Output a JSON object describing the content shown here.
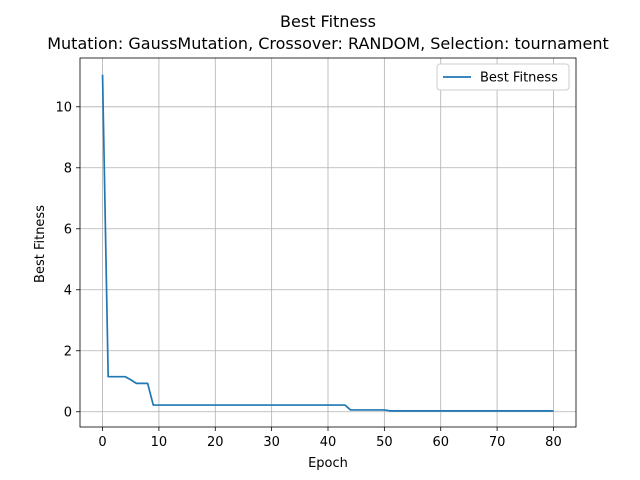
{
  "chart_data": {
    "type": "line",
    "title": "Best Fitness",
    "subtitle": "Mutation: GaussMutation, Crossover: RANDOM, Selection: tournament",
    "xlabel": "Epoch",
    "ylabel": "Best Fitness",
    "xlim": [
      -4,
      84
    ],
    "ylim": [
      -0.5,
      11.6
    ],
    "xticks": [
      0,
      10,
      20,
      30,
      40,
      50,
      60,
      70,
      80
    ],
    "yticks": [
      0,
      2,
      4,
      6,
      8,
      10
    ],
    "grid": true,
    "legend_position": "top-right",
    "series": [
      {
        "name": "Best Fitness",
        "color": "#1f77b4",
        "x": [
          0,
          1,
          2,
          3,
          4,
          5,
          6,
          7,
          8,
          9,
          10,
          20,
          30,
          40,
          43,
          44,
          50,
          51,
          60,
          70,
          80
        ],
        "y": [
          11.05,
          1.15,
          1.15,
          1.15,
          1.15,
          1.05,
          0.93,
          0.93,
          0.93,
          0.22,
          0.22,
          0.22,
          0.22,
          0.22,
          0.22,
          0.06,
          0.06,
          0.03,
          0.03,
          0.03,
          0.03
        ]
      }
    ]
  }
}
